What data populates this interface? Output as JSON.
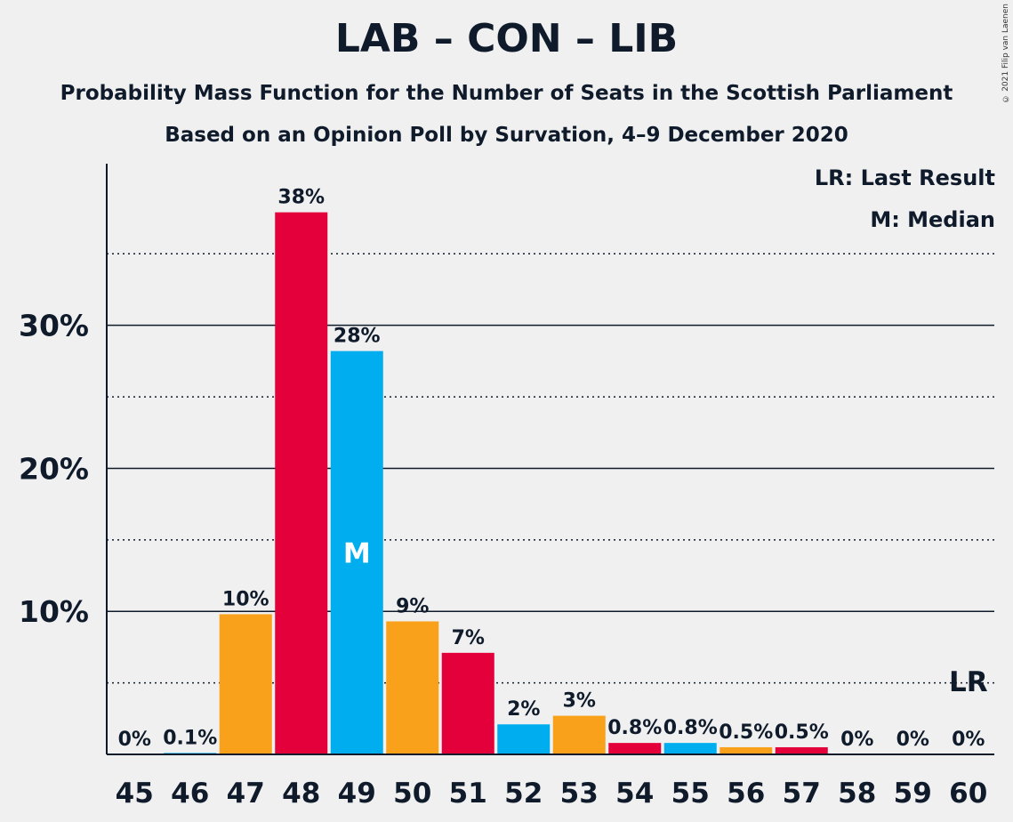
{
  "header": {
    "title": "LAB – CON – LIB",
    "subtitle": "Probability Mass Function for the Number of Seats in the Scottish Parliament",
    "source": "Based on an Opinion Poll by Survation, 4–9 December 2020",
    "copyright": "© 2021 Filip van Laenen"
  },
  "legend": {
    "lr": "LR: Last Result",
    "median": "M: Median"
  },
  "chart_data": {
    "type": "bar",
    "categories": [
      "45",
      "46",
      "47",
      "48",
      "49",
      "50",
      "51",
      "52",
      "53",
      "54",
      "55",
      "56",
      "57",
      "58",
      "59",
      "60"
    ],
    "values": [
      0,
      0.1,
      9.8,
      37.9,
      28.2,
      9.3,
      7.1,
      2.1,
      2.7,
      0.8,
      0.8,
      0.5,
      0.5,
      0,
      0,
      0
    ],
    "labels": [
      "0%",
      "0.1%",
      "10%",
      "38%",
      "28%",
      "9%",
      "7%",
      "2%",
      "3%",
      "0.8%",
      "0.8%",
      "0.5%",
      "0.5%",
      "0%",
      "0%",
      "0%"
    ],
    "colors": [
      "#00aeef",
      "#00aeef",
      "#f9a11b",
      "#e4003b",
      "#00aeef",
      "#f9a11b",
      "#e4003b",
      "#00aeef",
      "#f9a11b",
      "#e4003b",
      "#00aeef",
      "#f9a11b",
      "#e4003b",
      "#00aeef",
      "#f9a11b",
      "#e4003b"
    ],
    "yticks": [
      10,
      20,
      30
    ],
    "ytick_labels": [
      "10%",
      "20%",
      "30%"
    ],
    "minor_gridlines": [
      5,
      15,
      25,
      35
    ],
    "ylim": [
      0,
      41.3
    ],
    "median": {
      "category": "49",
      "label": "M"
    },
    "last_result": {
      "category": "60",
      "label": "LR"
    },
    "xlabel": "",
    "ylabel": ""
  }
}
